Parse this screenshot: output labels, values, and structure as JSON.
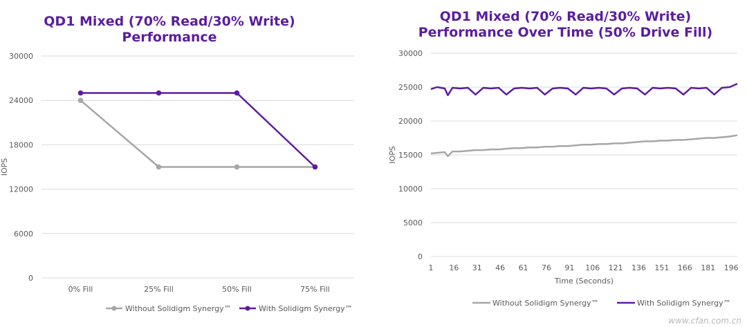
{
  "chart_data": [
    {
      "type": "line",
      "title": "QD1 Mixed (70% Read/30% Write) Performance",
      "title_lines": [
        "QD1 Mixed (70% Read/30% Write)",
        "Performance"
      ],
      "xlabel": "",
      "ylabel": "IOPS",
      "categories": [
        "0% Fill",
        "25% Fill",
        "50% Fill",
        "75% Fill"
      ],
      "ylim": [
        0,
        30000
      ],
      "yticks": [
        0,
        6000,
        12000,
        18000,
        24000,
        30000
      ],
      "grid": true,
      "legend_position": "bottom",
      "series": [
        {
          "name": "Without Solidigm Synergy™",
          "color": "#a6a6a6",
          "values": [
            24000,
            15000,
            15000,
            15000
          ]
        },
        {
          "name": "With Solidigm Synergy™",
          "color": "#5b1d9e",
          "values": [
            25000,
            25000,
            25000,
            15000
          ]
        }
      ]
    },
    {
      "type": "line",
      "title": "QD1 Mixed (70% Read/30% Write) Performance Over Time (50% Drive Fill)",
      "title_lines": [
        "QD1 Mixed (70% Read/30% Write)",
        "Performance Over Time (50% Drive Fill)"
      ],
      "xlabel": "Time (Seconds)",
      "ylabel": "IOPS",
      "xlim": [
        1,
        200
      ],
      "xticks": [
        1,
        16,
        31,
        46,
        61,
        76,
        91,
        106,
        121,
        136,
        151,
        166,
        181,
        196
      ],
      "ylim": [
        0,
        30000
      ],
      "yticks": [
        0,
        5000,
        10000,
        15000,
        20000,
        25000,
        30000
      ],
      "grid": true,
      "legend_position": "bottom",
      "series": [
        {
          "name": "Without Solidigm Synergy™",
          "color": "#a6a6a6",
          "x": [
            1,
            5,
            10,
            12,
            15,
            20,
            25,
            30,
            35,
            40,
            45,
            50,
            55,
            60,
            65,
            70,
            75,
            80,
            85,
            90,
            95,
            100,
            105,
            110,
            115,
            120,
            125,
            130,
            135,
            140,
            145,
            150,
            155,
            160,
            165,
            170,
            175,
            180,
            185,
            190,
            195,
            200
          ],
          "y": [
            15200,
            15300,
            15400,
            14800,
            15500,
            15500,
            15600,
            15700,
            15700,
            15800,
            15800,
            15900,
            16000,
            16000,
            16100,
            16100,
            16200,
            16200,
            16300,
            16300,
            16400,
            16500,
            16500,
            16600,
            16600,
            16700,
            16700,
            16800,
            16900,
            17000,
            17000,
            17100,
            17100,
            17200,
            17200,
            17300,
            17400,
            17500,
            17500,
            17600,
            17700,
            17900
          ]
        },
        {
          "name": "With Solidigm Synergy™",
          "color": "#5b1d9e",
          "x": [
            1,
            5,
            10,
            12,
            15,
            20,
            25,
            30,
            35,
            40,
            45,
            50,
            55,
            60,
            65,
            70,
            75,
            80,
            85,
            90,
            95,
            100,
            105,
            110,
            115,
            120,
            125,
            130,
            135,
            140,
            145,
            150,
            155,
            160,
            165,
            170,
            175,
            180,
            185,
            190,
            195,
            200
          ],
          "y": [
            24700,
            25000,
            24800,
            23800,
            24900,
            24800,
            24900,
            23900,
            24900,
            24800,
            24900,
            23900,
            24800,
            24900,
            24800,
            24900,
            23900,
            24800,
            24900,
            24800,
            23900,
            24900,
            24800,
            24900,
            24800,
            23900,
            24800,
            24900,
            24800,
            23900,
            24900,
            24800,
            24900,
            24800,
            23900,
            24900,
            24800,
            24900,
            23900,
            24900,
            25000,
            25500
          ]
        }
      ]
    }
  ],
  "watermark": "www.cfan.com.cn"
}
